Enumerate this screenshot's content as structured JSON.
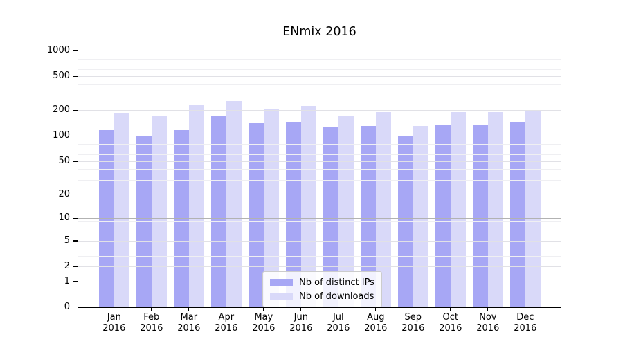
{
  "chart_data": {
    "type": "bar",
    "title": "ENmix 2016",
    "scale": "log1p-y",
    "grid": true,
    "legend_position": "lower center",
    "categories": [
      "Jan 2016",
      "Feb 2016",
      "Mar 2016",
      "Apr 2016",
      "May 2016",
      "Jun 2016",
      "Jul 2016",
      "Aug 2016",
      "Sep 2016",
      "Oct 2016",
      "Nov 2016",
      "Dec 2016"
    ],
    "series": [
      {
        "name": "Nb of distinct IPs",
        "color": "#a7a7f5",
        "values": [
          117,
          98,
          116,
          172,
          140,
          144,
          128,
          131,
          98,
          132,
          134,
          143
        ]
      },
      {
        "name": "Nb of downloads",
        "color": "#d9d9f9",
        "values": [
          187,
          174,
          229,
          257,
          204,
          225,
          170,
          189,
          131,
          190,
          190,
          194
        ]
      }
    ],
    "y_ticks": [
      0,
      1,
      2,
      5,
      10,
      20,
      50,
      100,
      200,
      500,
      1000
    ],
    "minor_gridlines": [
      3,
      4,
      6,
      7,
      8,
      9,
      30,
      40,
      60,
      70,
      80,
      90,
      300,
      400,
      600,
      700,
      800,
      900
    ],
    "ylim": [
      0,
      1290
    ],
    "xlabel": "",
    "ylabel": ""
  },
  "colors": {
    "distinct_ips_bar": "#a7a7f5",
    "downloads_bar": "#d9d9f9",
    "decade_gridline": "#b2b2b2",
    "labeled_gridline": "#e1e1e6",
    "minor_gridline": "#efeff2",
    "axis": "#000000",
    "legend_border": "#cccccc"
  }
}
